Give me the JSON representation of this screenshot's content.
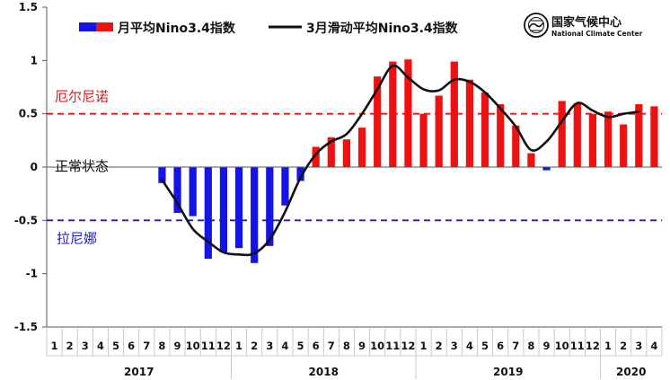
{
  "chart_data": {
    "type": "bar",
    "legend": {
      "bar_series": "月平均Nino3.4指数",
      "line_series": "3月滑动平均Nino3.4指数",
      "placement": "top"
    },
    "logo": {
      "name_cn": "国家气候中心",
      "name_en": "National Climate Center",
      "icon": "cma-emblem-icon"
    },
    "reference_lines": [
      {
        "value": 0.5,
        "label": "厄尔尼诺",
        "color": "#e8141c"
      },
      {
        "value": 0,
        "label": "正常状态",
        "color": "#111111"
      },
      {
        "value": -0.5,
        "label": "拉尼娜",
        "color": "#1a1acc"
      }
    ],
    "ylim": [
      -1.5,
      1.5
    ],
    "yticks": [
      "1.5",
      "1",
      "0.5",
      "0",
      "-0.5",
      "-1",
      "-1.5"
    ],
    "ytick_values": [
      1.5,
      1,
      0.5,
      0,
      -0.5,
      -1,
      -1.5
    ],
    "categories": [
      "1",
      "2",
      "3",
      "4",
      "5",
      "6",
      "7",
      "8",
      "9",
      "10",
      "11",
      "12",
      "1",
      "2",
      "3",
      "4",
      "5",
      "6",
      "7",
      "8",
      "9",
      "10",
      "11",
      "12",
      "1",
      "2",
      "3",
      "4",
      "5",
      "6",
      "7",
      "8",
      "9",
      "10",
      "11",
      "12",
      "1",
      "2",
      "3",
      "4"
    ],
    "years": [
      {
        "label": "2017",
        "months": 12
      },
      {
        "label": "2018",
        "months": 12
      },
      {
        "label": "2019",
        "months": 12
      },
      {
        "label": "2020",
        "months": 4
      }
    ],
    "series": [
      {
        "name": "月平均Nino3.4指数",
        "kind": "bar",
        "color_negative": "#1414e6",
        "color_positive": "#ee1111",
        "values": [
          null,
          null,
          null,
          null,
          null,
          null,
          null,
          -0.15,
          -0.43,
          -0.46,
          -0.86,
          -0.8,
          -0.76,
          -0.9,
          -0.74,
          -0.36,
          -0.13,
          0.19,
          0.28,
          0.26,
          0.37,
          0.85,
          0.99,
          1.01,
          0.5,
          0.67,
          0.99,
          0.82,
          0.7,
          0.59,
          0.39,
          0.13,
          -0.03,
          0.62,
          0.6,
          0.5,
          0.52,
          0.4,
          0.59,
          0.57
        ]
      },
      {
        "name": "3月滑动平均Nino3.4指数",
        "kind": "line",
        "color": "#111111",
        "values": [
          null,
          null,
          null,
          null,
          null,
          null,
          null,
          -0.12,
          -0.34,
          -0.58,
          -0.7,
          -0.8,
          -0.82,
          -0.81,
          -0.68,
          -0.42,
          -0.1,
          0.12,
          0.24,
          0.31,
          0.5,
          0.73,
          0.95,
          0.84,
          0.73,
          0.72,
          0.82,
          0.8,
          0.7,
          0.55,
          0.38,
          0.16,
          0.24,
          0.43,
          0.6,
          0.53,
          0.47,
          0.5,
          0.52,
          null
        ]
      }
    ],
    "grid": false
  }
}
